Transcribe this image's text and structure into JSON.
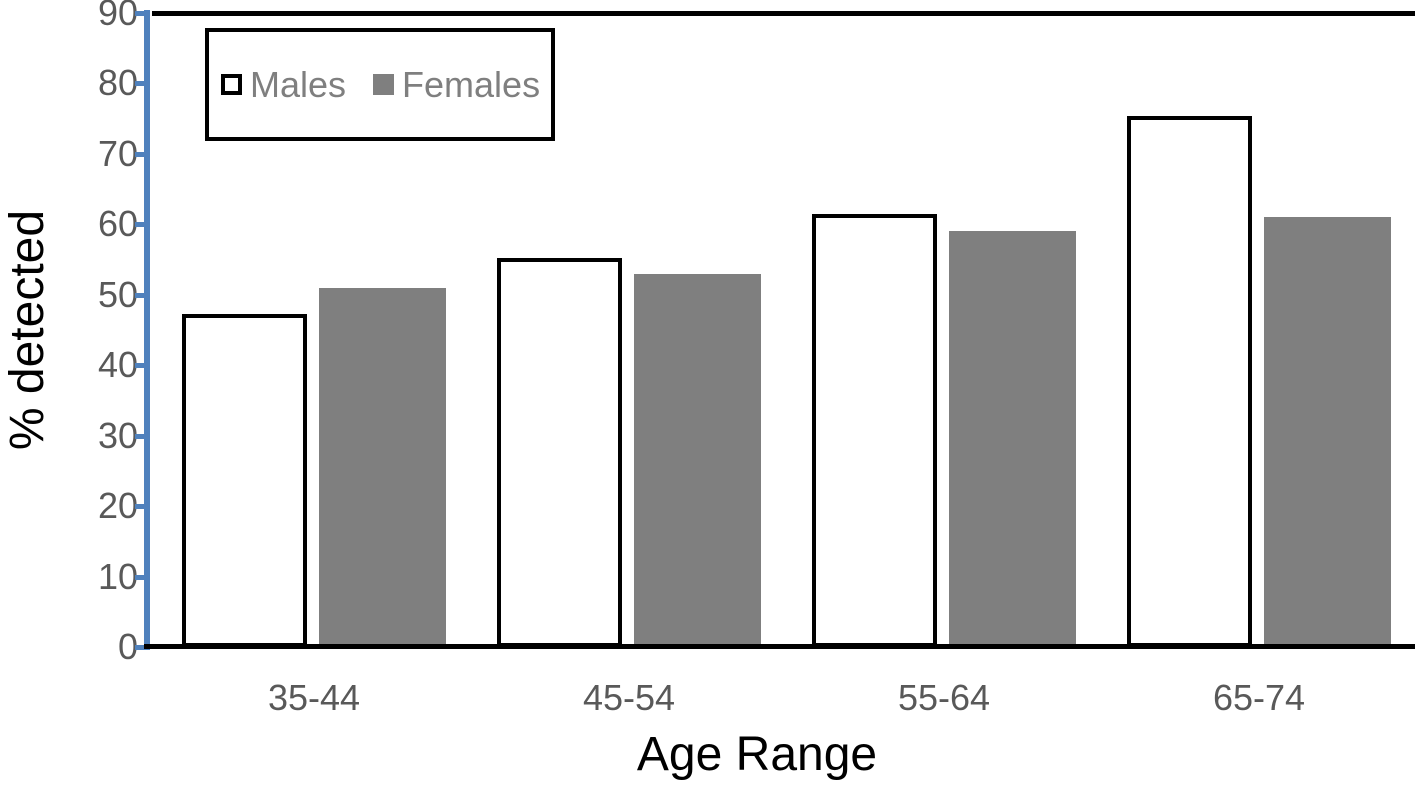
{
  "chart_data": {
    "type": "bar",
    "title": "",
    "categories": [
      "35-44",
      "45-54",
      "55-64",
      "65-74"
    ],
    "series": [
      {
        "name": "Males",
        "values": [
          47.3,
          55.2,
          61.4,
          75.4
        ],
        "fill": "#FFFFFF",
        "border": "#000000"
      },
      {
        "name": "Females",
        "values": [
          51,
          53,
          59,
          61
        ],
        "fill": "#7F7F7F",
        "border": "#7F7F7F"
      }
    ],
    "xlabel": "Age Range",
    "ylabel": "% detected",
    "ylim": [
      0,
      90
    ],
    "yticks": [
      0,
      10,
      20,
      30,
      40,
      50,
      60,
      70,
      80,
      90
    ],
    "grid": false,
    "legend_position": "top-left"
  },
  "colors": {
    "y_axis_blue": "#4F81BD",
    "bar_gray": "#7F7F7F",
    "tick_label_gray": "#595959",
    "legend_text_gray": "#7F7F7F",
    "axis_black": "#000000",
    "background": "#FFFFFF"
  }
}
